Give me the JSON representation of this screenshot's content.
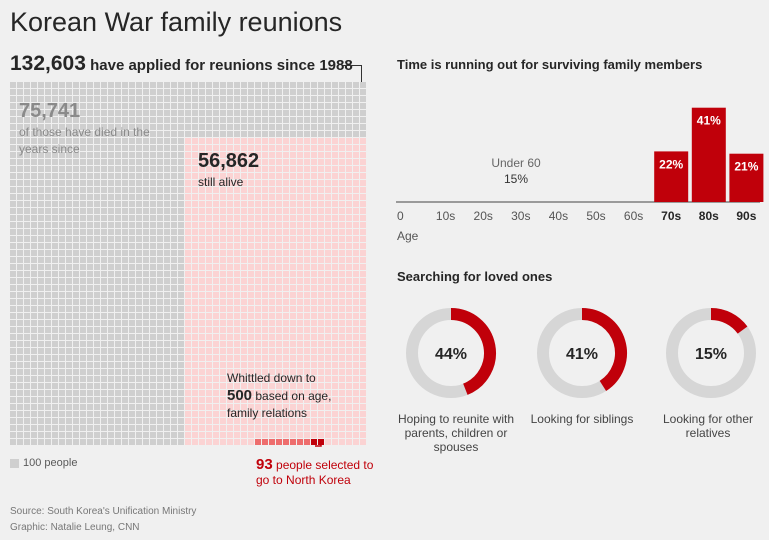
{
  "header": {
    "title": "Korean War family reunions",
    "applied_number": "132,603",
    "applied_text": "have applied for reunions since 1988"
  },
  "waffle": {
    "total": 132603,
    "died": 75741,
    "alive": 56862,
    "whittled": 500,
    "selected": 93,
    "unit_people": 100,
    "died_number": "75,741",
    "died_text": "of those have died in the years since",
    "alive_number": "56,862",
    "alive_text": "still alive",
    "whittled_pre": "Whittled down to",
    "whittled_number": "500",
    "whittled_post": "based on age, family relations",
    "selected_number": "93",
    "selected_text": "people selected to go to North Korea",
    "legend": "100 people",
    "colors": {
      "died": "#cfcfcf",
      "alive": "#fbd3d3",
      "whittled": "#ee6d6d",
      "selected": "#c0000a"
    }
  },
  "chart_data": [
    {
      "type": "bar",
      "title": "Time is running out for surviving family members",
      "xlabel": "Age",
      "categories": [
        "0",
        "10s",
        "20s",
        "30s",
        "40s",
        "50s",
        "60s",
        "70s",
        "80s",
        "90s"
      ],
      "bold_categories": [
        "70s",
        "80s",
        "90s"
      ],
      "series": [
        {
          "values": [
            null,
            null,
            null,
            null,
            null,
            null,
            null,
            22,
            41,
            21
          ]
        }
      ],
      "annotation": {
        "label": "Under 60",
        "value": "15%"
      },
      "value_labels": [
        "22%",
        "41%",
        "21%"
      ],
      "color": "#c0000a",
      "grid": false
    },
    {
      "type": "pie",
      "title": "Searching for loved ones",
      "items": [
        {
          "value": 44,
          "label_text": "44%",
          "caption": "Hoping to reunite with parents, children or spouses"
        },
        {
          "value": 41,
          "label_text": "41%",
          "caption": "Looking for siblings"
        },
        {
          "value": 15,
          "label_text": "15%",
          "caption": "Looking for other relatives"
        }
      ],
      "color": "#c0000a",
      "track_color": "#d6d6d6"
    }
  ],
  "footer": {
    "source": "Source: South Korea's Unification Ministry",
    "graphic": "Graphic: Natalie Leung, CNN"
  }
}
